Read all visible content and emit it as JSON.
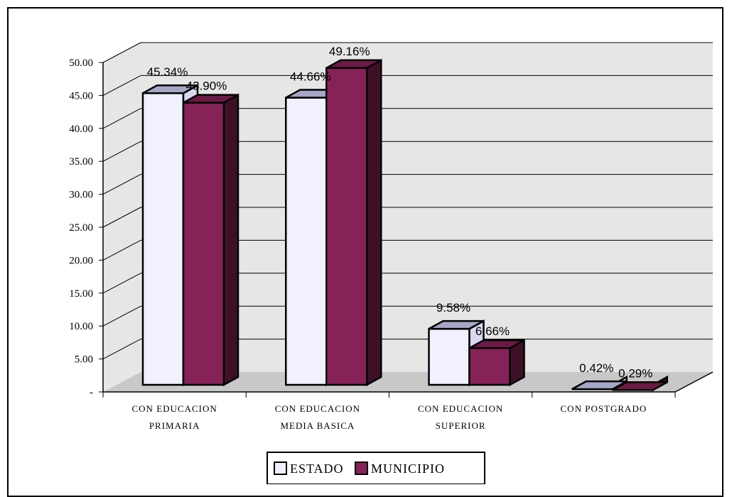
{
  "chart_data": {
    "type": "bar",
    "categories": [
      [
        "CON EDUCACION",
        "PRIMARIA"
      ],
      [
        "CON EDUCACION",
        "MEDIA BASICA"
      ],
      [
        "CON EDUCACION",
        "SUPERIOR"
      ],
      [
        "CON POSTGRADO"
      ]
    ],
    "series": [
      {
        "name": "ESTADO",
        "values": [
          45.34,
          44.66,
          9.58,
          0.42
        ],
        "labels": [
          "45.34%",
          "44.66%",
          "9.58%",
          "0.42%"
        ],
        "color": "#f0f0ff",
        "top_color": "#a6a6c6",
        "side_color": "#d8d8f0"
      },
      {
        "name": "MUNICIPIO",
        "values": [
          43.9,
          49.16,
          6.66,
          0.29
        ],
        "labels": [
          "43.90%",
          "49.16%",
          "6.66%",
          "0.29%"
        ],
        "color": "#872259",
        "top_color": "#6b1a46",
        "side_color": "#3e1028"
      }
    ],
    "yticks": [
      "-",
      "5.00",
      "10.00",
      "15.00",
      "20.00",
      "25.00",
      "30.00",
      "35.00",
      "40.00",
      "45.00",
      "50.00"
    ],
    "ylim": [
      0,
      50
    ],
    "grid": true,
    "legend_position": "bottom",
    "title": "",
    "xlabel": "",
    "ylabel": "",
    "wall_color": "#e6e6e6",
    "floor_color": "#c8c8c8"
  }
}
